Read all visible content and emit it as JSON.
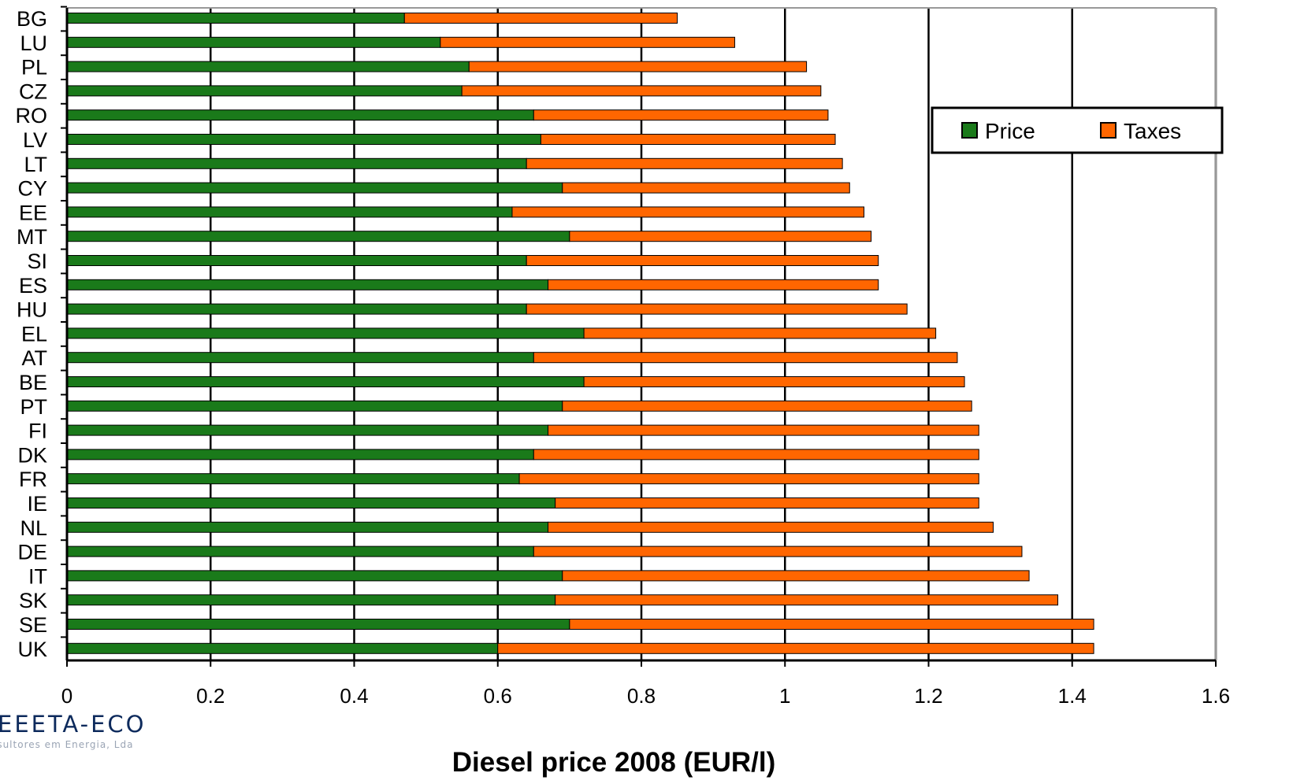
{
  "chart_data": {
    "type": "bar",
    "orientation": "horizontal",
    "stacked": true,
    "title": "",
    "xlabel": "Diesel price 2008 (EUR/l)",
    "ylabel": "",
    "xlim": [
      0,
      1.6
    ],
    "xticks": [
      "0",
      "0.2",
      "0.4",
      "0.6",
      "0.8",
      "1",
      "1.2",
      "1.4",
      "1.6"
    ],
    "grid": "vertical",
    "legend_position": "top-right",
    "categories": [
      "BG",
      "LU",
      "PL",
      "CZ",
      "RO",
      "LV",
      "LT",
      "CY",
      "EE",
      "MT",
      "SI",
      "ES",
      "HU",
      "EL",
      "AT",
      "BE",
      "PT",
      "FI",
      "DK",
      "FR",
      "IE",
      "NL",
      "DE",
      "IT",
      "SK",
      "SE",
      "UK"
    ],
    "series": [
      {
        "name": "Price",
        "color": "#1a7a1a",
        "values": [
          0.47,
          0.52,
          0.56,
          0.55,
          0.65,
          0.66,
          0.64,
          0.69,
          0.62,
          0.7,
          0.64,
          0.67,
          0.64,
          0.72,
          0.65,
          0.72,
          0.69,
          0.67,
          0.65,
          0.63,
          0.68,
          0.67,
          0.65,
          0.69,
          0.68,
          0.7,
          0.6
        ]
      },
      {
        "name": "Taxes",
        "color": "#ff6600",
        "values": [
          0.38,
          0.41,
          0.47,
          0.5,
          0.41,
          0.41,
          0.44,
          0.4,
          0.49,
          0.42,
          0.49,
          0.46,
          0.53,
          0.49,
          0.59,
          0.53,
          0.57,
          0.6,
          0.62,
          0.64,
          0.59,
          0.62,
          0.68,
          0.65,
          0.7,
          0.73,
          0.83
        ]
      }
    ]
  },
  "logo": {
    "main": "EEETA-ECO",
    "sub": "Consultores em Energia, Lda"
  }
}
